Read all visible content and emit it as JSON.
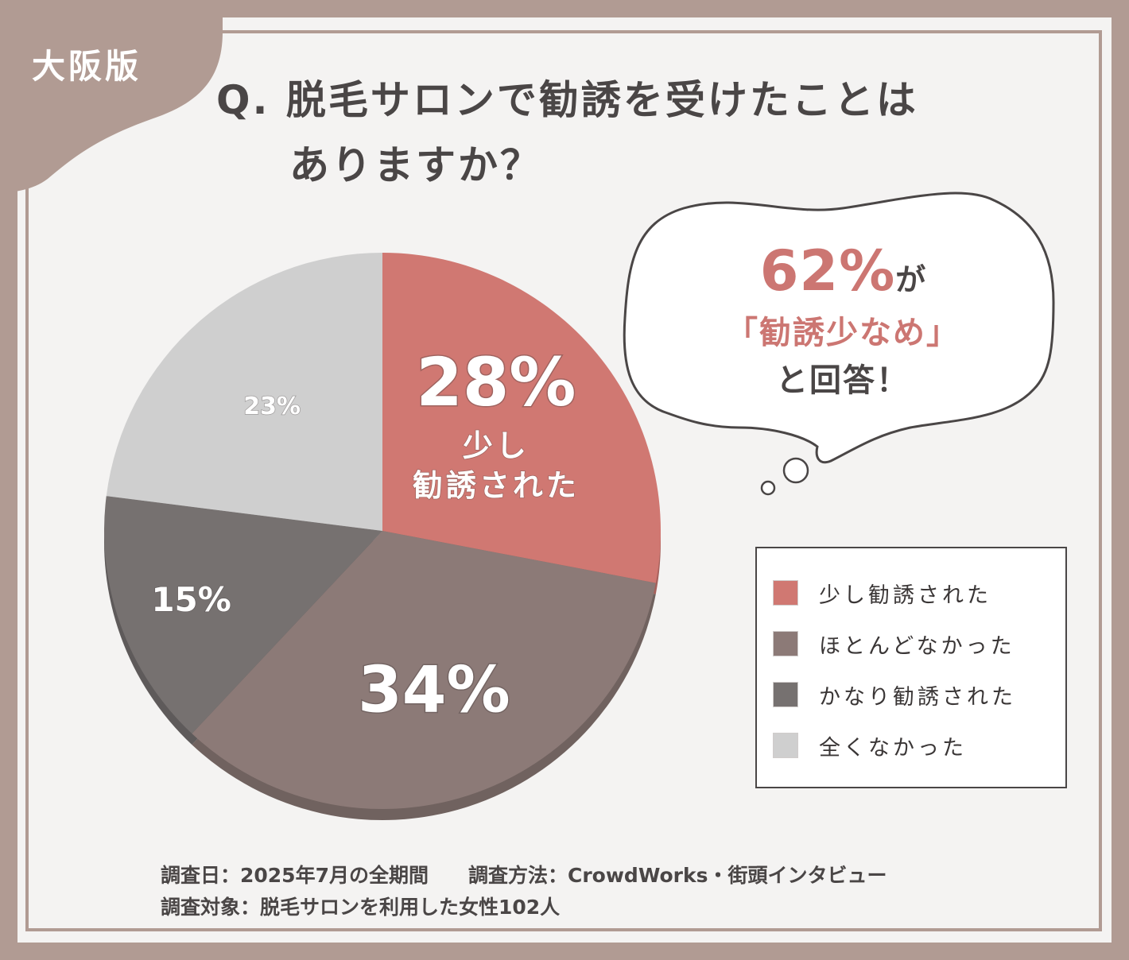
{
  "badge": "大阪版",
  "question": {
    "line1": "Q. 脱毛サロンで勧誘を受けたことは",
    "line2": "ありますか？"
  },
  "callout": {
    "percent": "62%",
    "ga": "が",
    "line2": "「勧誘少なめ」",
    "line3": "と回答！"
  },
  "colors": {
    "little": "#d07872",
    "almost_none": "#8c7a77",
    "quite": "#767170",
    "none": "#cfcfcf",
    "frame": "#b19b93",
    "text": "#4a4646"
  },
  "chart_data": {
    "type": "pie",
    "title": "脱毛サロンで勧誘を受けたことはありますか？",
    "slices": [
      {
        "label": "少し勧誘された",
        "value": 28,
        "display": "28%",
        "sub": [
          "少し",
          "勧誘された"
        ],
        "color": "#d07872"
      },
      {
        "label": "ほとんどなかった",
        "value": 34,
        "display": "34%",
        "sub": [],
        "color": "#8c7a77"
      },
      {
        "label": "かなり勧誘された",
        "value": 15,
        "display": "15%",
        "sub": [],
        "color": "#767170"
      },
      {
        "label": "全くなかった",
        "value": 23,
        "display": "23%",
        "sub": [],
        "color": "#cfcfcf"
      }
    ]
  },
  "legend": {
    "items": [
      {
        "label": "少し勧誘された",
        "color": "#d07872"
      },
      {
        "label": "ほとんどなかった",
        "color": "#8c7a77"
      },
      {
        "label": "かなり勧誘された",
        "color": "#767170"
      },
      {
        "label": "全くなかった",
        "color": "#cfcfcf"
      }
    ]
  },
  "footer": {
    "date": "調査日：2025年7月の全期間",
    "method": "調査方法：CrowdWorks・街頭インタビュー",
    "target": "調査対象：脱毛サロンを利用した女性102人"
  }
}
